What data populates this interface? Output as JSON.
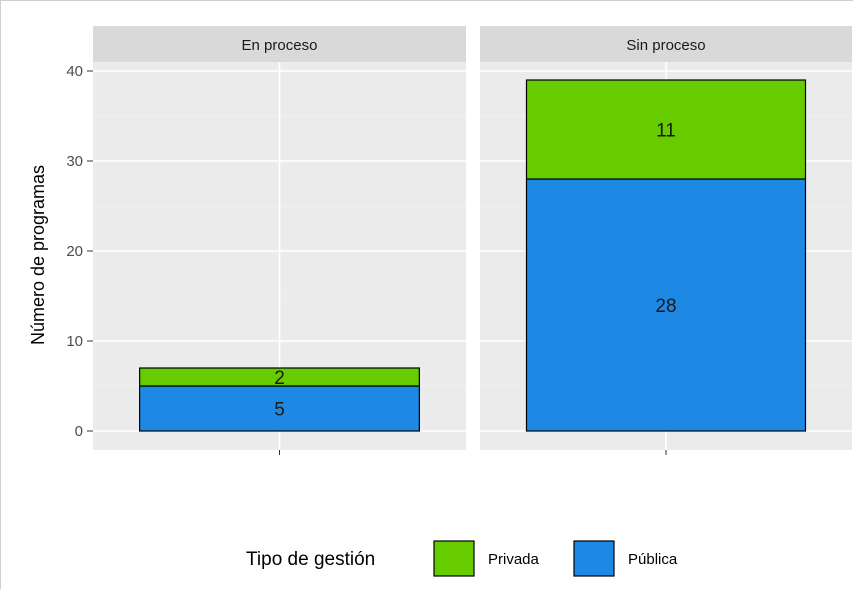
{
  "chart_data": {
    "type": "bar",
    "stacked": true,
    "facets": [
      "En proceso",
      "Sin proceso"
    ],
    "ylabel": "Número de programas",
    "ylim": [
      0,
      44
    ],
    "yticks": [
      0,
      10,
      20,
      30,
      40
    ],
    "grid": true,
    "series": [
      {
        "name": "Pública",
        "color": "#1e88e5",
        "values": [
          5,
          28
        ]
      },
      {
        "name": "Privada",
        "color": "#66cc00",
        "values": [
          2,
          11
        ]
      }
    ],
    "legend": {
      "title": "Tipo de gestión",
      "position": "bottom",
      "order": [
        "Privada",
        "Pública"
      ]
    }
  }
}
